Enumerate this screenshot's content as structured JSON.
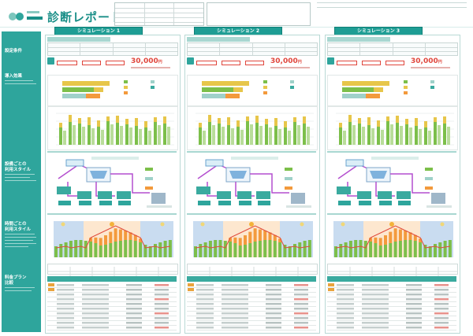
{
  "header": {
    "title": "診断レポート"
  },
  "sidebar": {
    "sections": [
      "設定条件",
      "導入効果",
      "設備ごとの",
      "利用スタイル",
      "時間ごとの",
      "利用スタイル",
      "料金プラン",
      "比較"
    ]
  },
  "simulations": [
    {
      "tab": "シミュレーション 1",
      "yen_value": "30,000",
      "yen_unit": "円"
    },
    {
      "tab": "シミュレーション 2",
      "yen_value": "30,000",
      "yen_unit": "円"
    },
    {
      "tab": "シミュレーション 3",
      "yen_value": "30,000",
      "yen_unit": "円"
    }
  ],
  "colors": {
    "brand": "#1b8f88",
    "sidebar": "#2ea59c",
    "accent_red": "#e0463c",
    "bar_green": "#7cbf4a",
    "bar_yellow": "#e7c64a",
    "bar_orange": "#f39a3c",
    "line_red": "#e04a3c",
    "night_blue": "#c9dcf0"
  }
}
